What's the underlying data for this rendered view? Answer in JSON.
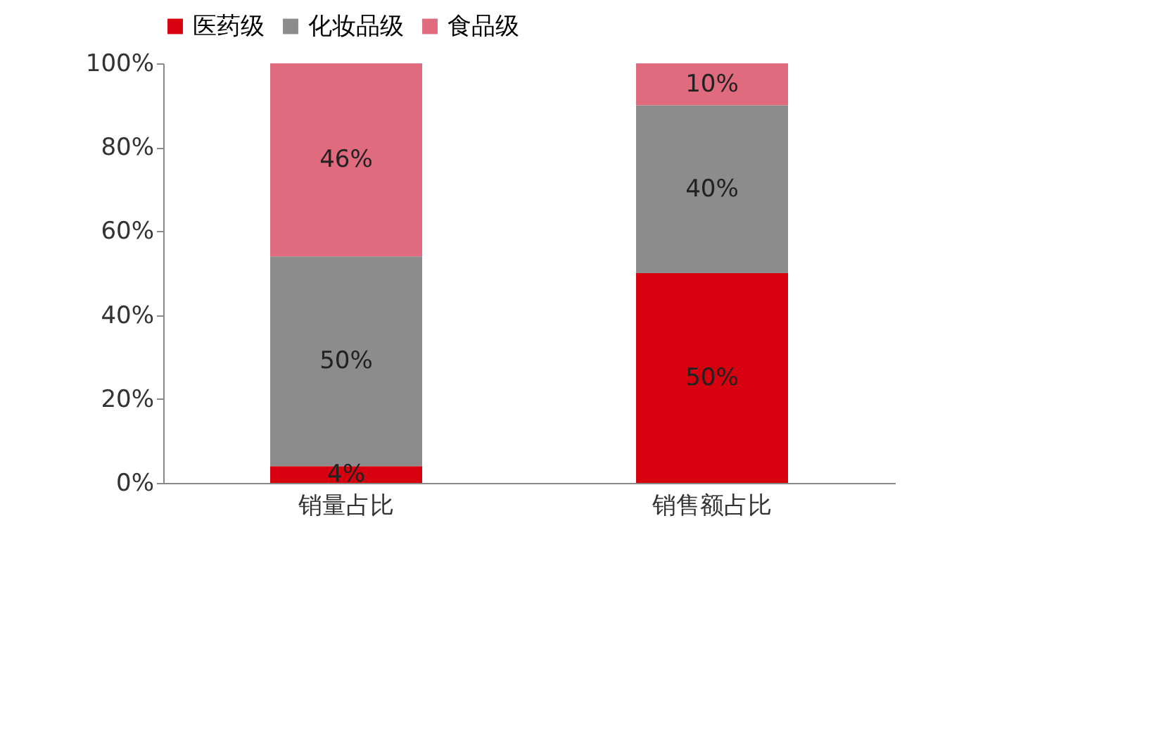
{
  "chart_data": {
    "type": "bar",
    "stacked": true,
    "categories": [
      "销量占比",
      "销售额占比"
    ],
    "series": [
      {
        "name": "医药级",
        "color": "#d7000f",
        "values": [
          4,
          50
        ],
        "value_labels": [
          "4%",
          "50%"
        ]
      },
      {
        "name": "化妆品级",
        "color": "#8c8c8c",
        "values": [
          50,
          40
        ],
        "value_labels": [
          "50%",
          "40%"
        ]
      },
      {
        "name": "食品级",
        "color": "#e06b7f",
        "values": [
          46,
          10
        ],
        "value_labels": [
          "46%",
          "10%"
        ]
      }
    ],
    "ylim": [
      0,
      100
    ],
    "yticks": [
      {
        "value": 0,
        "label": "0%"
      },
      {
        "value": 20,
        "label": "20%"
      },
      {
        "value": 40,
        "label": "40%"
      },
      {
        "value": 60,
        "label": "60%"
      },
      {
        "value": 80,
        "label": "80%"
      },
      {
        "value": 100,
        "label": "100%"
      }
    ],
    "legend": "top",
    "grid": false
  }
}
